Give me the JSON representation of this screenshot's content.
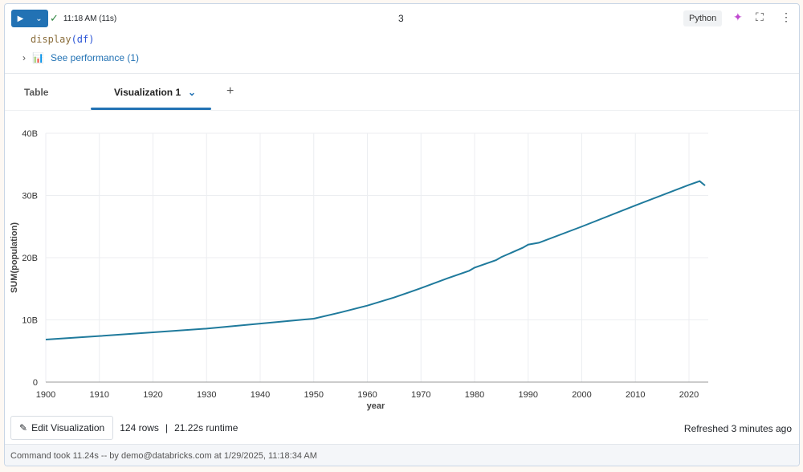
{
  "cell": {
    "run_icon": "play-icon",
    "status_time": "11:18 AM (11s)",
    "cell_number": "3",
    "language": "Python",
    "code_fn": "display",
    "code_args": "(df)",
    "performance_link": "See performance (1)"
  },
  "tabs": [
    {
      "label": "Table"
    },
    {
      "label": "Visualization 1",
      "active": true
    }
  ],
  "footer": {
    "edit_label": "Edit Visualization",
    "rows": "124 rows",
    "runtime": "21.22s runtime",
    "refreshed": "Refreshed 3 minutes ago",
    "command": "Command took 11.24s -- by demo@databricks.com at 1/29/2025, 11:18:34 AM"
  },
  "colors": {
    "accent": "#2272b4",
    "series": "#1f7a9c"
  },
  "chart_data": {
    "type": "line",
    "xlabel": "year",
    "ylabel": "SUM(population)",
    "xlim": [
      1900,
      2023
    ],
    "ylim": [
      0,
      40000000000
    ],
    "grid": true,
    "x_ticks": [
      "1900",
      "1910",
      "1920",
      "1930",
      "1940",
      "1950",
      "1960",
      "1970",
      "1980",
      "1990",
      "2000",
      "2010",
      "2020"
    ],
    "y_ticks": [
      "0",
      "10B",
      "20B",
      "30B",
      "40B"
    ],
    "series": [
      {
        "x": [
          1900,
          1910,
          1920,
          1930,
          1940,
          1950,
          1955,
          1960,
          1965,
          1970,
          1975,
          1979,
          1980,
          1984,
          1985,
          1989,
          1990,
          1992,
          2000,
          2010,
          2020,
          2022,
          2023
        ],
        "y": [
          6840000000.0,
          7400000000.0,
          8000000000.0,
          8600000000.0,
          9400000000.0,
          10200000000.0,
          11200000000.0,
          12300000000.0,
          13600000000.0,
          15100000000.0,
          16700000000.0,
          17900000000.0,
          18400000000.0,
          19600000000.0,
          20100000000.0,
          21600000000.0,
          22100000000.0,
          22400000000.0,
          25000000000.0,
          28400000000.0,
          31700000000.0,
          32300000000.0,
          31600000000.0
        ]
      }
    ]
  }
}
